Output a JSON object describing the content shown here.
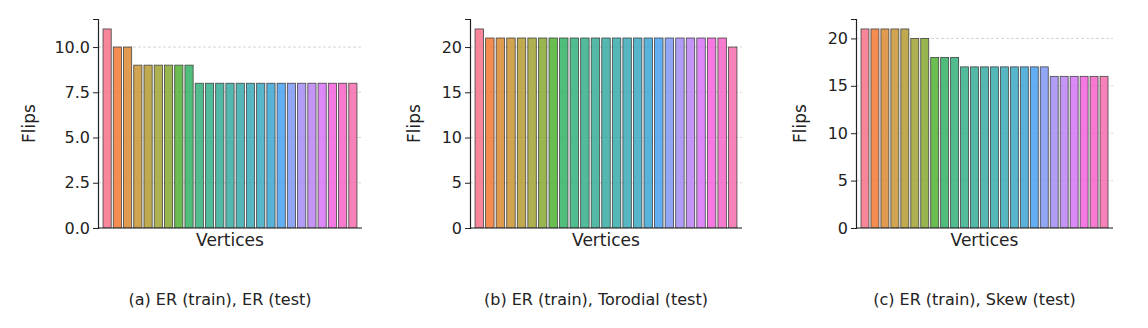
{
  "chart_data": [
    {
      "type": "bar",
      "title": "(a) ER (train), ER (test)",
      "x_label": "Vertices",
      "y_label": "Flips",
      "categories": [
        null,
        null,
        null,
        null,
        null,
        null,
        null,
        null,
        null,
        null,
        null,
        null,
        null,
        null,
        null,
        null,
        null,
        null,
        null,
        null,
        null,
        null,
        null,
        null,
        null
      ],
      "values": [
        11,
        10,
        10,
        9,
        9,
        9,
        9,
        9,
        9,
        8,
        8,
        8,
        8,
        8,
        8,
        8,
        8,
        8,
        8,
        8,
        8,
        8,
        8,
        8,
        8
      ],
      "colors": [
        "#f77189",
        "#f37932",
        "#dc8932",
        "#c99432",
        "#b59b31",
        "#a1a231",
        "#86a831",
        "#50b131",
        "#32b165",
        "#33b07a",
        "#34af8a",
        "#35ad97",
        "#36aca2",
        "#37abac",
        "#38aab7",
        "#39a8c3",
        "#3ba5d2",
        "#49a0f1",
        "#7f97f4",
        "#a38cf4",
        "#bb83f4",
        "#d673f4",
        "#f461de",
        "#f564c6",
        "#f66bad"
      ],
      "ylim": [
        0,
        11.55
      ],
      "yticks": [
        {
          "value": 0,
          "label": "0.0"
        },
        {
          "value": 2.5,
          "label": "2.5"
        },
        {
          "value": 5,
          "label": "5.0"
        },
        {
          "value": 7.5,
          "label": "7.5"
        },
        {
          "value": 10,
          "label": "10.0"
        }
      ],
      "grid": true,
      "tick_labels": "y"
    },
    {
      "type": "bar",
      "title": "(b) ER (train), Torodial (test)",
      "x_label": "Vertices",
      "y_label": "Flips",
      "categories": [
        null,
        null,
        null,
        null,
        null,
        null,
        null,
        null,
        null,
        null,
        null,
        null,
        null,
        null,
        null,
        null,
        null,
        null,
        null,
        null,
        null,
        null,
        null,
        null,
        null
      ],
      "values": [
        22,
        21,
        21,
        21,
        21,
        21,
        21,
        21,
        21,
        21,
        21,
        21,
        21,
        21,
        21,
        21,
        21,
        21,
        21,
        21,
        21,
        21,
        21,
        21,
        20
      ],
      "colors": [
        "#f77189",
        "#f37932",
        "#dc8932",
        "#c99432",
        "#b59b31",
        "#a1a231",
        "#86a831",
        "#50b131",
        "#32b165",
        "#33b07a",
        "#34af8a",
        "#35ad97",
        "#36aca2",
        "#37abac",
        "#38aab7",
        "#39a8c3",
        "#3ba5d2",
        "#49a0f1",
        "#7f97f4",
        "#a38cf4",
        "#bb83f4",
        "#d673f4",
        "#f461de",
        "#f564c6",
        "#f66bad"
      ],
      "ylim": [
        0,
        23.1
      ],
      "yticks": [
        0,
        5,
        10,
        15,
        20
      ],
      "grid": true,
      "tick_labels": "y"
    },
    {
      "type": "bar",
      "title": "(c) ER (train), Skew (test)",
      "x_label": "Vertices",
      "y_label": "Flips",
      "categories": [
        null,
        null,
        null,
        null,
        null,
        null,
        null,
        null,
        null,
        null,
        null,
        null,
        null,
        null,
        null,
        null,
        null,
        null,
        null,
        null,
        null,
        null,
        null,
        null,
        null
      ],
      "values": [
        21,
        21,
        21,
        21,
        21,
        20,
        20,
        18,
        18,
        18,
        17,
        17,
        17,
        17,
        17,
        17,
        17,
        17,
        17,
        16,
        16,
        16,
        16,
        16,
        16
      ],
      "colors": [
        "#f77189",
        "#f37932",
        "#dc8932",
        "#c99432",
        "#b59b31",
        "#a1a231",
        "#86a831",
        "#50b131",
        "#32b165",
        "#33b07a",
        "#34af8a",
        "#35ad97",
        "#36aca2",
        "#37abac",
        "#38aab7",
        "#39a8c3",
        "#3ba5d2",
        "#49a0f1",
        "#7f97f4",
        "#a38cf4",
        "#bb83f4",
        "#d673f4",
        "#f461de",
        "#f564c6",
        "#f66bad"
      ],
      "ylim": [
        0,
        22.05
      ],
      "yticks": [
        0,
        5,
        10,
        15,
        20
      ],
      "grid": true,
      "tick_labels": "y"
    }
  ]
}
